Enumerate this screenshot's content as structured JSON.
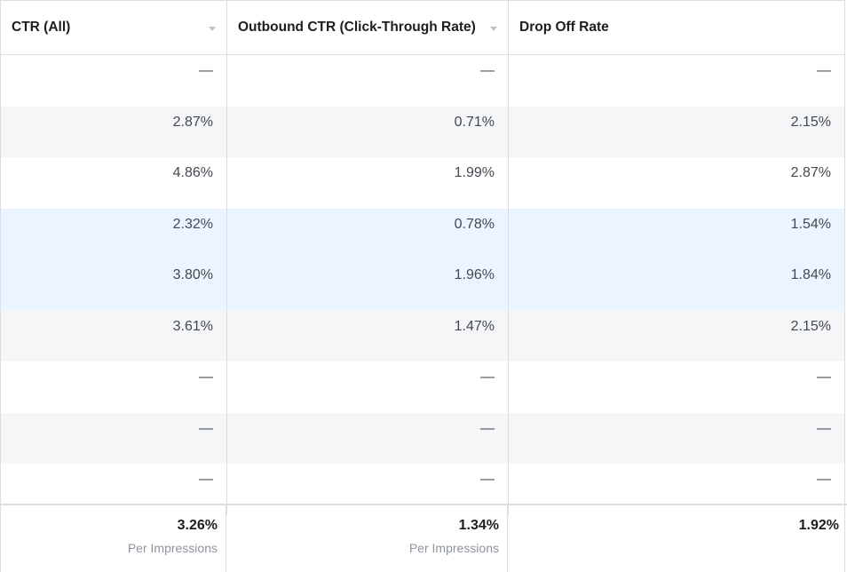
{
  "columns": [
    {
      "label": "CTR (All)",
      "sortable": true
    },
    {
      "label": "Outbound CTR (Click-Through Rate)",
      "sortable": true
    },
    {
      "label": "Drop Off Rate",
      "sortable": false
    }
  ],
  "rows": [
    {
      "bg": "white",
      "cells": [
        "—",
        "—",
        "—"
      ]
    },
    {
      "bg": "grey",
      "cells": [
        "2.87%",
        "0.71%",
        "2.15%"
      ]
    },
    {
      "bg": "white",
      "cells": [
        "4.86%",
        "1.99%",
        "2.87%"
      ]
    },
    {
      "bg": "blue",
      "cells": [
        "2.32%",
        "0.78%",
        "1.54%"
      ]
    },
    {
      "bg": "blue",
      "cells": [
        "3.80%",
        "1.96%",
        "1.84%"
      ]
    },
    {
      "bg": "grey",
      "cells": [
        "3.61%",
        "1.47%",
        "2.15%"
      ]
    },
    {
      "bg": "white",
      "cells": [
        "—",
        "—",
        "—"
      ]
    },
    {
      "bg": "grey",
      "cells": [
        "—",
        "—",
        "—"
      ]
    },
    {
      "bg": "white",
      "cells": [
        "—",
        "—",
        "—"
      ]
    }
  ],
  "totals": [
    {
      "value": "3.26%",
      "sub": "Per Impressions"
    },
    {
      "value": "1.34%",
      "sub": "Per Impressions"
    },
    {
      "value": "1.92%",
      "sub": ""
    }
  ],
  "colors": {
    "row_grey": "#f5f6f7",
    "row_blue": "#ebf5ff",
    "border": "#dadde1"
  }
}
